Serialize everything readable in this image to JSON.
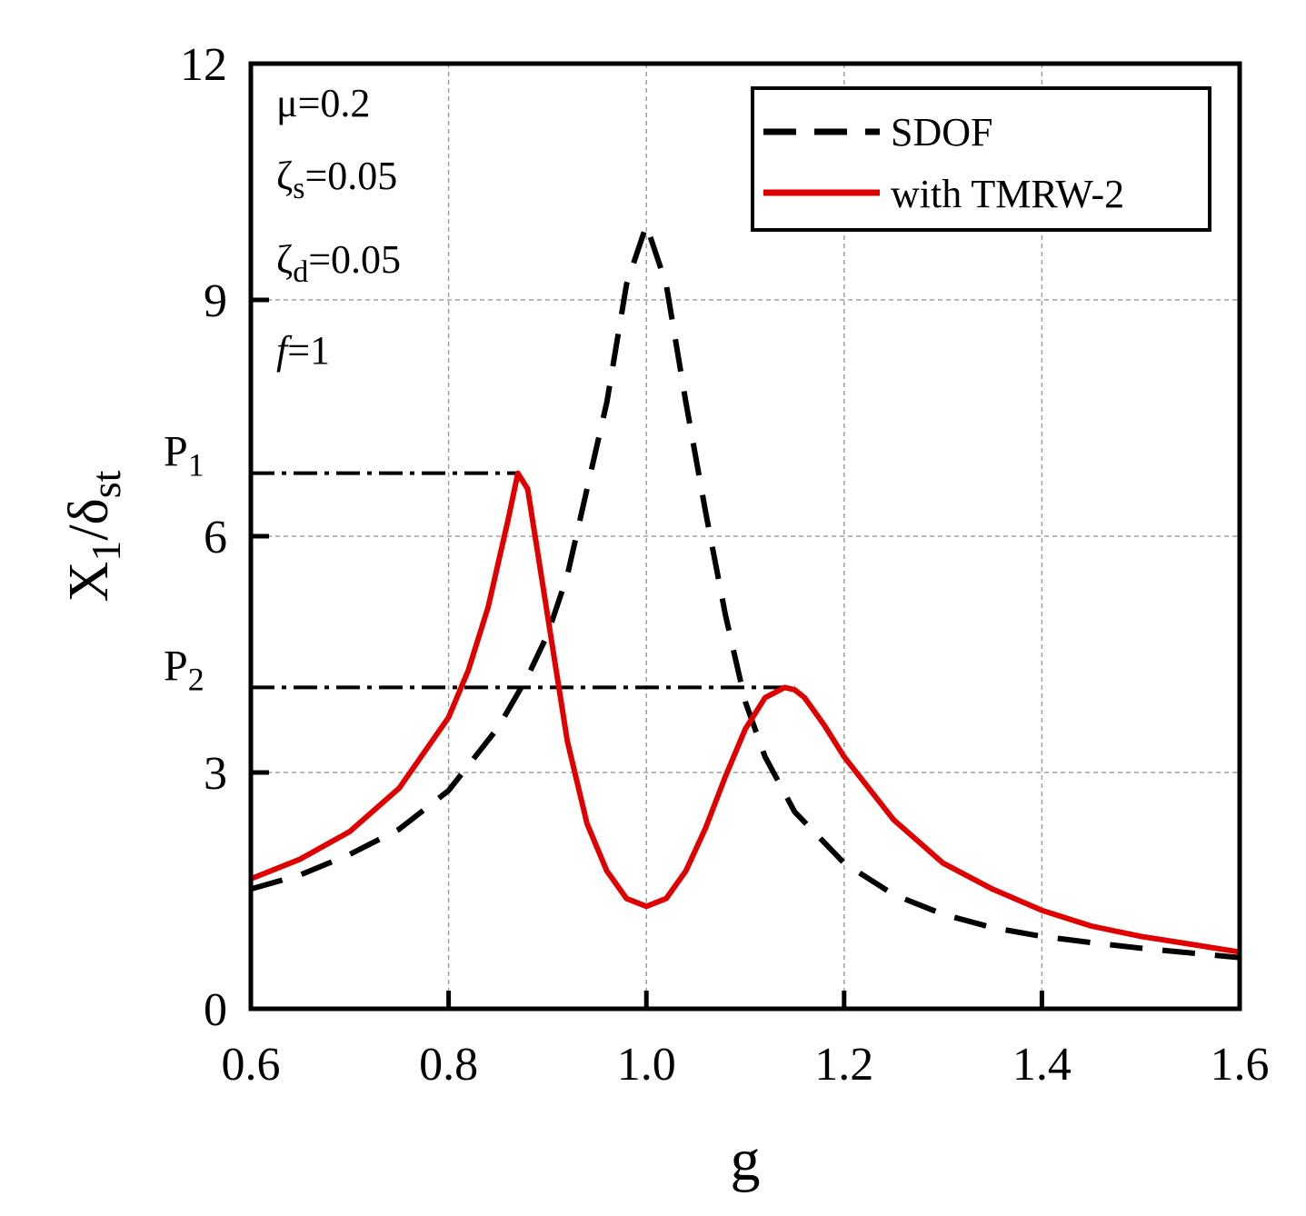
{
  "chart_data": {
    "type": "line",
    "xlabel": "g",
    "ylabel": "X",
    "ylabel_sub1": "1",
    "ylabel_sep": "/δ",
    "ylabel_sub2": "st",
    "xlim": [
      0.6,
      1.6
    ],
    "ylim": [
      0,
      12
    ],
    "xticks": [
      0.6,
      0.8,
      1.0,
      1.2,
      1.4,
      1.6
    ],
    "xtick_labels": [
      "0.6",
      "0.8",
      "1.0",
      "1.2",
      "1.4",
      "1.6"
    ],
    "yticks": [
      0,
      3,
      6,
      9,
      12
    ],
    "ytick_labels": [
      "0",
      "3",
      "6",
      "9",
      "12"
    ],
    "grid": true,
    "legend_position": "top-right",
    "params": {
      "mu": {
        "sym": "μ",
        "rest": "=0.2"
      },
      "zeta_s": {
        "sym": "ζ",
        "sub": "s",
        "rest": "=0.05"
      },
      "zeta_d": {
        "sym": "ζ",
        "sub": "d",
        "rest": "=0.05"
      },
      "f": {
        "sym": "f",
        "rest": "=1"
      }
    },
    "peak_labels": [
      {
        "main": "P",
        "sub": "1",
        "y": 6.8,
        "x_end": 0.87
      },
      {
        "main": "P",
        "sub": "2",
        "y": 4.08,
        "x_end": 1.15
      }
    ],
    "series": [
      {
        "name": "SDOF",
        "color": "#000000",
        "style": "dashed",
        "x": [
          0.6,
          0.65,
          0.7,
          0.75,
          0.8,
          0.85,
          0.88,
          0.9,
          0.92,
          0.94,
          0.96,
          0.98,
          1.0,
          1.02,
          1.04,
          1.06,
          1.08,
          1.1,
          1.12,
          1.15,
          1.2,
          1.25,
          1.3,
          1.35,
          1.4,
          1.45,
          1.5,
          1.55,
          1.6
        ],
        "y": [
          1.52,
          1.7,
          1.96,
          2.28,
          2.77,
          3.57,
          4.22,
          4.75,
          5.5,
          6.6,
          7.7,
          9.2,
          9.95,
          9.2,
          7.7,
          6.3,
          5.0,
          3.9,
          3.2,
          2.5,
          1.85,
          1.45,
          1.2,
          1.03,
          0.92,
          0.84,
          0.77,
          0.71,
          0.65
        ]
      },
      {
        "name": "with TMRW-2",
        "color": "#e00000",
        "style": "solid",
        "x": [
          0.6,
          0.65,
          0.7,
          0.75,
          0.8,
          0.82,
          0.84,
          0.86,
          0.87,
          0.88,
          0.9,
          0.92,
          0.94,
          0.96,
          0.98,
          1.0,
          1.02,
          1.04,
          1.06,
          1.08,
          1.1,
          1.12,
          1.14,
          1.15,
          1.16,
          1.18,
          1.2,
          1.25,
          1.3,
          1.35,
          1.4,
          1.45,
          1.5,
          1.55,
          1.6
        ],
        "y": [
          1.65,
          1.9,
          2.25,
          2.8,
          3.7,
          4.3,
          5.1,
          6.2,
          6.8,
          6.6,
          5.0,
          3.4,
          2.35,
          1.75,
          1.4,
          1.3,
          1.4,
          1.75,
          2.3,
          2.95,
          3.55,
          3.95,
          4.08,
          4.05,
          3.95,
          3.6,
          3.2,
          2.4,
          1.85,
          1.52,
          1.25,
          1.05,
          0.92,
          0.82,
          0.72
        ]
      }
    ]
  }
}
